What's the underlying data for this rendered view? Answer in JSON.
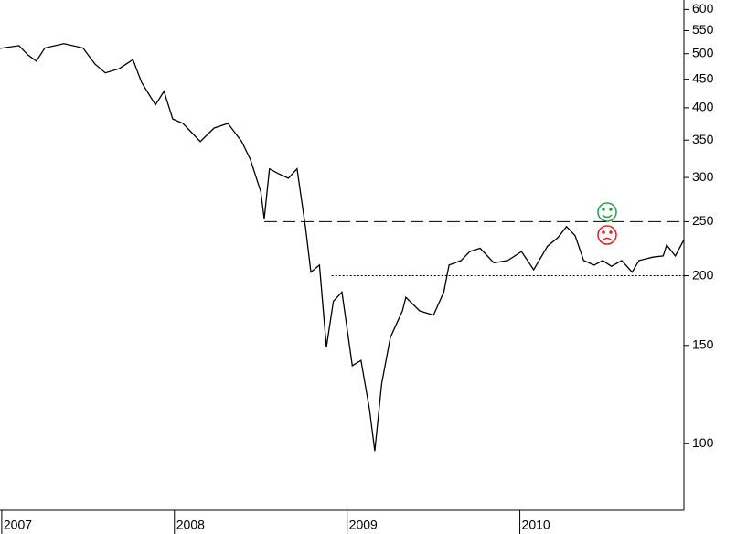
{
  "chart_data": {
    "type": "line",
    "log_scale": true,
    "x": [
      2006.99,
      2007.1,
      2007.15,
      2007.2,
      2007.25,
      2007.36,
      2007.47,
      2007.54,
      2007.6,
      2007.68,
      2007.76,
      2007.81,
      2007.89,
      2007.94,
      2007.99,
      2008.05,
      2008.1,
      2008.15,
      2008.23,
      2008.31,
      2008.39,
      2008.44,
      2008.5,
      2008.52,
      2008.55,
      2008.6,
      2008.66,
      2008.71,
      2008.76,
      2008.79,
      2008.84,
      2008.88,
      2008.92,
      2008.97,
      2009.03,
      2009.08,
      2009.13,
      2009.16,
      2009.2,
      2009.25,
      2009.32,
      2009.34,
      2009.42,
      2009.5,
      2009.56,
      2009.59,
      2009.66,
      2009.71,
      2009.77,
      2009.85,
      2009.93,
      2010.01,
      2010.08,
      2010.16,
      2010.22,
      2010.27,
      2010.32,
      2010.37,
      2010.43,
      2010.48,
      2010.53,
      2010.59,
      2010.65,
      2010.69,
      2010.77,
      2010.83,
      2010.85,
      2010.9,
      2010.95
    ],
    "series": [
      {
        "color": "#000000",
        "values": [
          511,
          517,
          498,
          485,
          512,
          521,
          512,
          479,
          462,
          470,
          488,
          444,
          405,
          428,
          382,
          375,
          361,
          348,
          368,
          375,
          348,
          323,
          283,
          253,
          311,
          305,
          299,
          311,
          243,
          203,
          209,
          149,
          180,
          187,
          138,
          141,
          115,
          97,
          128,
          155,
          173,
          183,
          173,
          170,
          187,
          209,
          213,
          221,
          224,
          211,
          213,
          221,
          205,
          226,
          234,
          245,
          236,
          213,
          209,
          213,
          208,
          213,
          203,
          213,
          216,
          217,
          227,
          217,
          232
        ]
      }
    ],
    "xlim": [
      2006.99,
      2010.95
    ],
    "xticks": [
      2007,
      2008,
      2009,
      2010
    ],
    "ylim": [
      76,
      624
    ],
    "yticks": [
      100,
      150,
      200,
      250,
      300,
      350,
      400,
      450,
      500,
      550,
      600
    ],
    "levels": [
      {
        "value": 250,
        "from": 2008.52,
        "style": "dashed"
      },
      {
        "value": 200,
        "from": 2008.91,
        "style": "dotted"
      }
    ]
  }
}
